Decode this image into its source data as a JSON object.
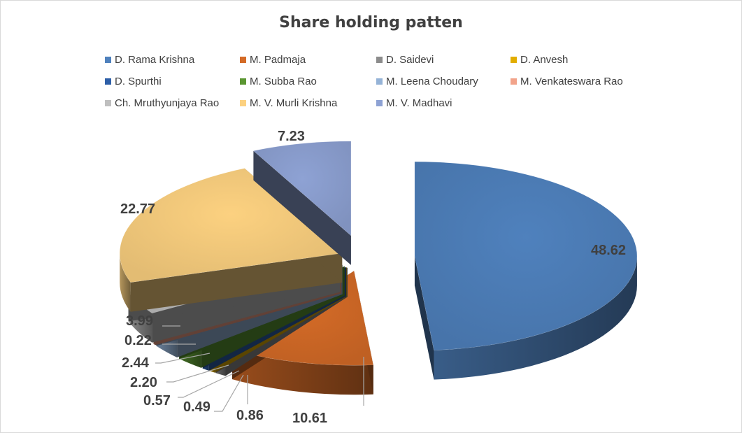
{
  "chart_data": {
    "type": "pie",
    "title": "Share holding patten",
    "legend_placement": "top",
    "slices": [
      {
        "name": "D. Rama Krishna",
        "value": 48.62,
        "label": "48.62",
        "color": "#4f81bd"
      },
      {
        "name": "M. Padmaja",
        "value": 10.61,
        "label": "10.61",
        "color": "#d46b27"
      },
      {
        "name": "D. Saidevi",
        "value": 0.86,
        "label": "0.86",
        "color": "#8c8c8c"
      },
      {
        "name": "D. Anvesh",
        "value": 0.49,
        "label": "0.49",
        "color": "#e2ad00"
      },
      {
        "name": "D. Spurthi",
        "value": 0.57,
        "label": "0.57",
        "color": "#2e5fa8"
      },
      {
        "name": "M. Subba Rao",
        "value": 2.2,
        "label": "2.20",
        "color": "#5b9632"
      },
      {
        "name": "M. Leena Choudary",
        "value": 2.44,
        "label": "2.44",
        "color": "#95b3d7"
      },
      {
        "name": "M. Venkateswara Rao",
        "value": 0.22,
        "label": "0.22",
        "color": "#f2a38a"
      },
      {
        "name": "Ch. Mruthyunjaya Rao",
        "value": 3.99,
        "label": "3.99",
        "color": "#bfbfbf"
      },
      {
        "name": "M. V. Murli Krishna",
        "value": 22.77,
        "label": "22.77",
        "color": "#fcd180"
      },
      {
        "name": "M. V. Madhavi",
        "value": 7.23,
        "label": "7.23",
        "color": "#8ea2d4"
      }
    ]
  }
}
